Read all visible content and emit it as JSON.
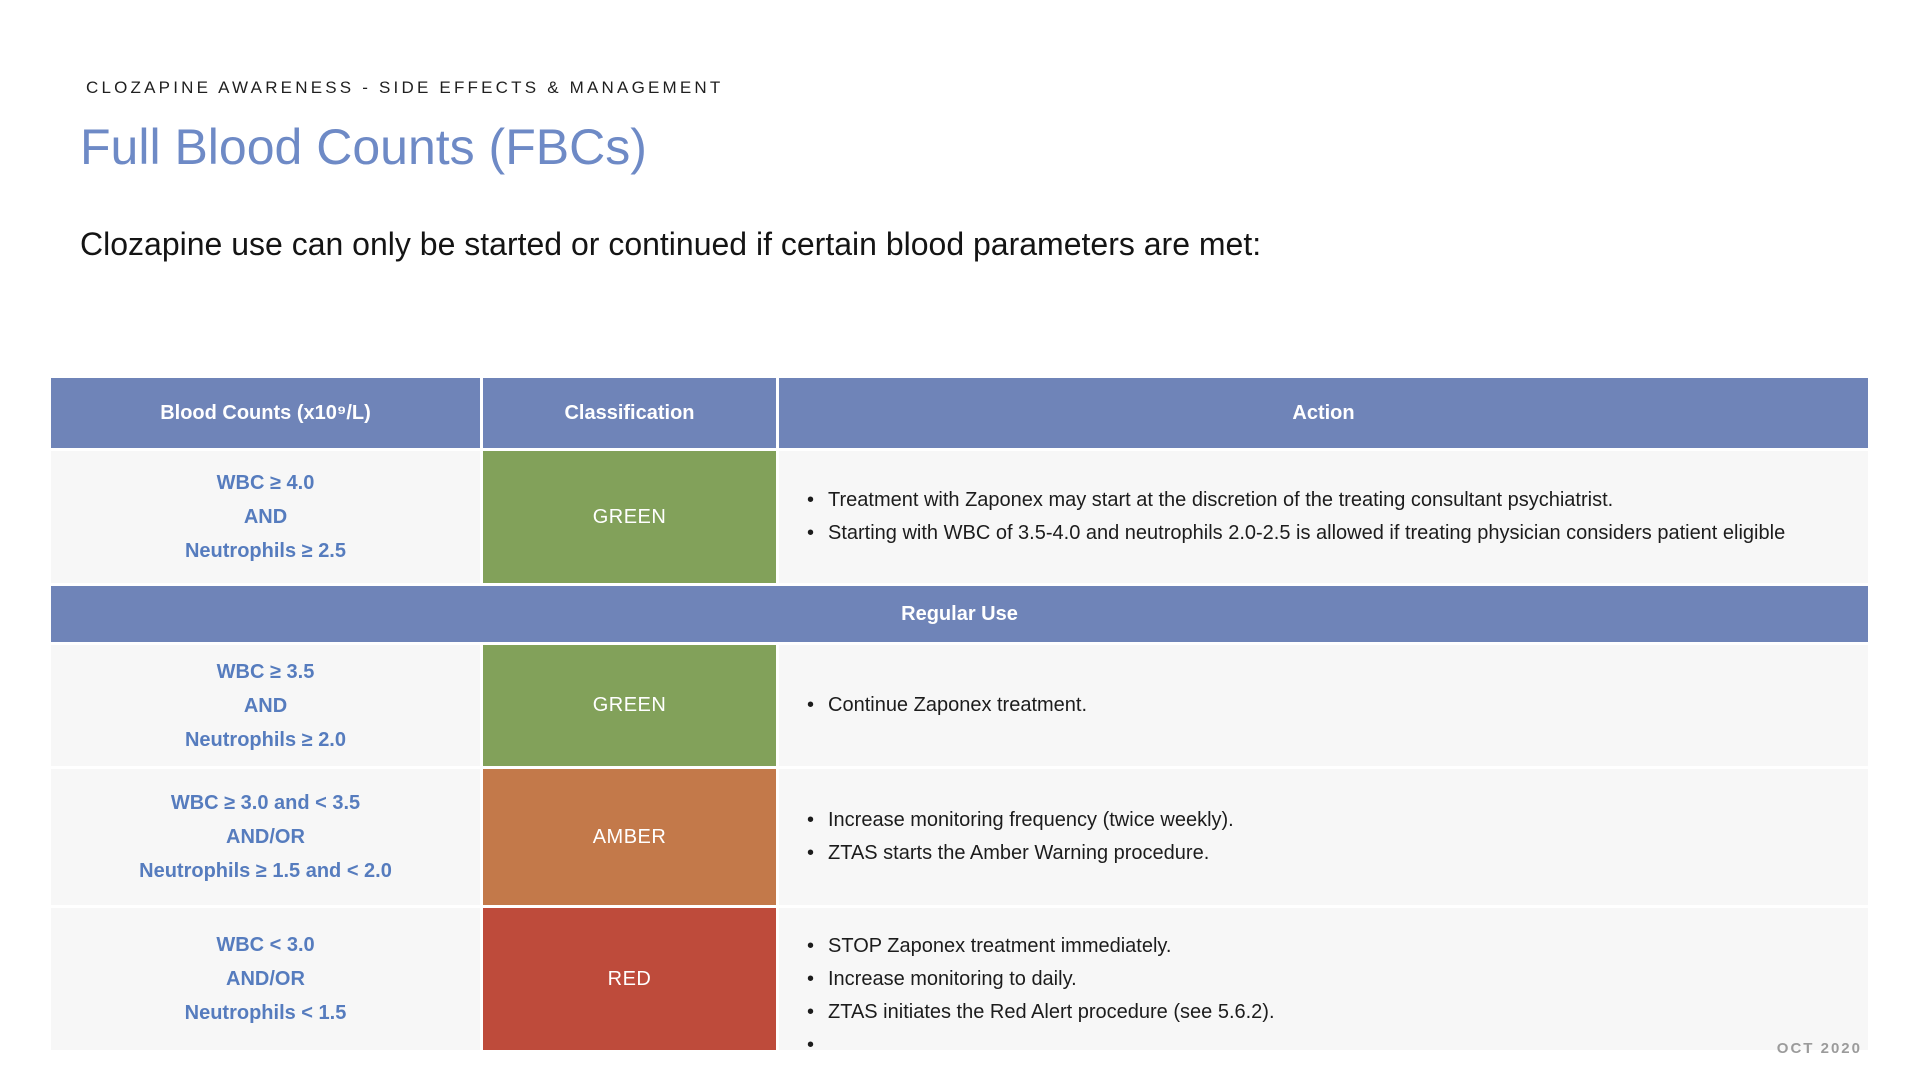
{
  "page": {
    "kicker": "CLOZAPINE AWARENESS - SIDE EFFECTS & MANAGEMENT",
    "title": "Full Blood Counts (FBCs)",
    "intro": "Clozapine use can only be started or continued if certain blood parameters are met:",
    "footer_date": "OCT 2020"
  },
  "colors": {
    "header_blue": "#6F84B8",
    "row_background": "#F7F7F7",
    "green": "#82A15A",
    "amber": "#C3794A",
    "red": "#BE4B3B",
    "criteria_text_blue": "#567CBE",
    "title_blue": "#6E8AC6",
    "footer_gray": "#9B9B9B"
  },
  "table": {
    "headers": [
      "Blood Counts (x10⁹/L)",
      "Classification",
      "Action"
    ],
    "section_banner": "Regular Use",
    "rows": [
      {
        "criteria_lines": [
          "WBC ≥ 4.0",
          "AND",
          "Neutrophils ≥ 2.5"
        ],
        "classification": "GREEN",
        "classification_color": "#82A15A",
        "actions": [
          "Treatment with Zaponex may start at the discretion of the treating consultant psychiatrist.",
          "Starting with WBC of 3.5-4.0 and neutrophils 2.0-2.5 is allowed if treating physician considers patient eligible"
        ]
      },
      {
        "criteria_lines": [
          "WBC ≥ 3.5",
          "AND",
          "Neutrophils ≥ 2.0"
        ],
        "classification": "GREEN",
        "classification_color": "#82A15A",
        "actions": [
          "Continue Zaponex treatment."
        ]
      },
      {
        "criteria_lines": [
          "WBC ≥ 3.0 and < 3.5",
          "AND/OR",
          "Neutrophils ≥ 1.5 and < 2.0"
        ],
        "classification": "AMBER",
        "classification_color": "#C3794A",
        "actions": [
          "Increase monitoring frequency (twice weekly).",
          "ZTAS starts the Amber Warning procedure."
        ]
      },
      {
        "criteria_lines": [
          "WBC < 3.0",
          "AND/OR",
          "Neutrophils < 1.5"
        ],
        "classification": "RED",
        "classification_color": "#BE4B3B",
        "actions": [
          "STOP Zaponex treatment immediately.",
          "Increase monitoring to daily.",
          "ZTAS initiates the Red Alert procedure (see 5.6.2).",
          ""
        ]
      }
    ]
  }
}
